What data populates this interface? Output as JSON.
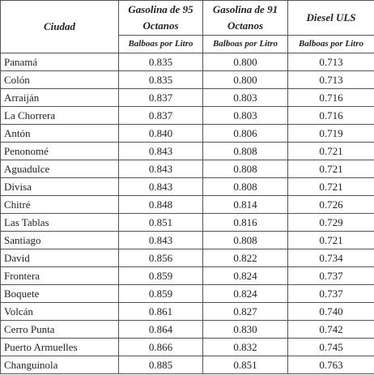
{
  "table": {
    "header": [
      "Ciudad",
      "Gasolina de 95 Octanos",
      "Gasolina de 91 Octanos",
      "Diesel ULS"
    ],
    "units": [
      "Balboas por Litro",
      "Balboas por Litro",
      "Balboas por Litro"
    ],
    "rows": [
      [
        "Panamá",
        "0.835",
        "0.800",
        "0.713"
      ],
      [
        "Colón",
        "0.835",
        "0.800",
        "0.713"
      ],
      [
        "Arraiján",
        "0.837",
        "0.803",
        "0.716"
      ],
      [
        "La Chorrera",
        "0.837",
        "0.803",
        "0.716"
      ],
      [
        "Antón",
        "0.840",
        "0.806",
        "0.719"
      ],
      [
        "Penonomé",
        "0.843",
        "0.808",
        "0.721"
      ],
      [
        "Aguadulce",
        "0.843",
        "0.808",
        "0.721"
      ],
      [
        "Divisa",
        "0.843",
        "0.808",
        "0.721"
      ],
      [
        "Chitré",
        "0.848",
        "0.814",
        "0.726"
      ],
      [
        "Las Tablas",
        "0.851",
        "0.816",
        "0.729"
      ],
      [
        "Santiago",
        "0.843",
        "0.808",
        "0.721"
      ],
      [
        "David",
        "0.856",
        "0.822",
        "0.734"
      ],
      [
        "Frontera",
        "0.859",
        "0.824",
        "0.737"
      ],
      [
        "Boquete",
        "0.859",
        "0.824",
        "0.737"
      ],
      [
        "Volcán",
        "0.861",
        "0.827",
        "0.740"
      ],
      [
        "Cerro Punta",
        "0.864",
        "0.830",
        "0.742"
      ],
      [
        "Puerto Armuelles",
        "0.866",
        "0.832",
        "0.745"
      ],
      [
        "Changuinola",
        "0.885",
        "0.851",
        "0.763"
      ]
    ]
  }
}
